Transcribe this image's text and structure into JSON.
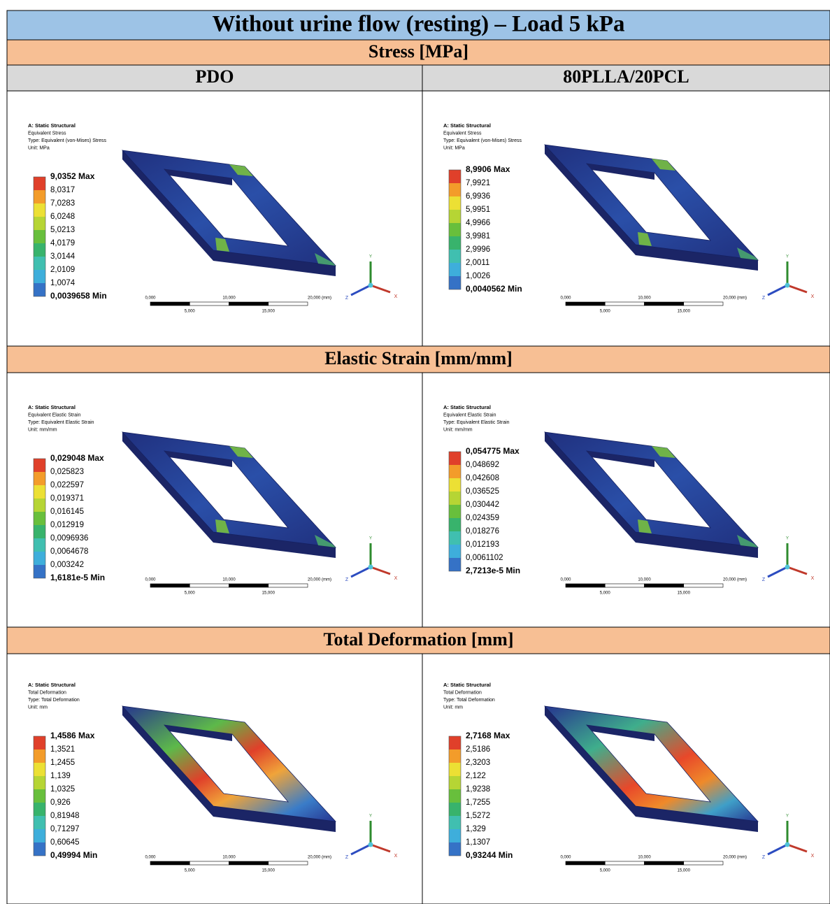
{
  "title": "Without urine flow (resting) – Load 5 kPa",
  "columns": [
    "PDO",
    "80PLLA/20PCL"
  ],
  "sections": [
    {
      "heading": "Stress [MPa]",
      "panels": [
        {
          "header": [
            "A: Static Structural",
            "Equivalent Stress",
            "Type: Equivalent (von-Mises) Stress",
            "Unit: MPa"
          ],
          "legend": [
            "9,0352 Max",
            "8,0317",
            "7,0283",
            "6,0248",
            "5,0213",
            "4,0179",
            "3,0144",
            "2,0109",
            "1,0074",
            "0,0039658 Min"
          ],
          "scale": {
            "top": [
              "0,000",
              "10,000",
              "20,000 (mm)"
            ],
            "bottom": [
              "5,000",
              "15,000"
            ]
          },
          "axes": [
            "Y",
            "Z",
            "X"
          ]
        },
        {
          "header": [
            "A: Static Structural",
            "Equivalent Stress",
            "Type: Equivalent (von-Mises) Stress",
            "Unit: MPa"
          ],
          "legend": [
            "8,9906 Max",
            "7,9921",
            "6,9936",
            "5,9951",
            "4,9966",
            "3,9981",
            "2,9996",
            "2,0011",
            "1,0026",
            "0,0040562 Min"
          ],
          "scale": {
            "top": [
              "0,000",
              "10,000",
              "20,000 (mm)"
            ],
            "bottom": [
              "5,000",
              "15,000"
            ]
          },
          "axes": [
            "Y",
            "Z",
            "X"
          ]
        }
      ]
    },
    {
      "heading": "Elastic Strain [mm/mm]",
      "panels": [
        {
          "header": [
            "A: Static Structural",
            "Equivalent Elastic Strain",
            "Type: Equivalent Elastic Strain",
            "Unit: mm/mm"
          ],
          "legend": [
            "0,029048 Max",
            "0,025823",
            "0,022597",
            "0,019371",
            "0,016145",
            "0,012919",
            "0,0096936",
            "0,0064678",
            "0,003242",
            "1,6181e-5 Min"
          ],
          "scale": {
            "top": [
              "0,000",
              "10,000",
              "20,000 (mm)"
            ],
            "bottom": [
              "5,000",
              "15,000"
            ]
          },
          "axes": [
            "Y",
            "Z",
            "X"
          ]
        },
        {
          "header": [
            "A: Static Structural",
            "Equivalent Elastic Strain",
            "Type: Equivalent Elastic Strain",
            "Unit: mm/mm"
          ],
          "legend": [
            "0,054775 Max",
            "0,048692",
            "0,042608",
            "0,036525",
            "0,030442",
            "0,024359",
            "0,018276",
            "0,012193",
            "0,0061102",
            "2,7213e-5 Min"
          ],
          "scale": {
            "top": [
              "0,000",
              "10,000",
              "20,000 (mm)"
            ],
            "bottom": [
              "5,000",
              "15,000"
            ]
          },
          "axes": [
            "Y",
            "Z",
            "X"
          ]
        }
      ]
    },
    {
      "heading": "Total Deformation [mm]",
      "panels": [
        {
          "header": [
            "A: Static Structural",
            "Total Deformation",
            "Type: Total Deformation",
            "Unit: mm"
          ],
          "legend": [
            "1,4586 Max",
            "1,3521",
            "1,2455",
            "1,139",
            "1,0325",
            "0,926",
            "0,81948",
            "0,71297",
            "0,60645",
            "0,49994 Min"
          ],
          "scale": {
            "top": [
              "0,000",
              "10,000",
              "20,000 (mm)"
            ],
            "bottom": [
              "5,000",
              "15,000"
            ]
          },
          "axes": [
            "Y",
            "Z",
            "X"
          ]
        },
        {
          "header": [
            "A: Static Structural",
            "Total Deformation",
            "Type: Total Deformation",
            "Unit: mm"
          ],
          "legend": [
            "2,7168 Max",
            "2,5186",
            "2,3203",
            "2,122",
            "1,9238",
            "1,7255",
            "1,5272",
            "1,329",
            "1,1307",
            "0,93244 Min"
          ],
          "scale": {
            "top": [
              "0,000",
              "10,000",
              "20,000 (mm)"
            ],
            "bottom": [
              "5,000",
              "15,000"
            ]
          },
          "axes": [
            "Y",
            "Z",
            "X"
          ]
        }
      ]
    }
  ]
}
